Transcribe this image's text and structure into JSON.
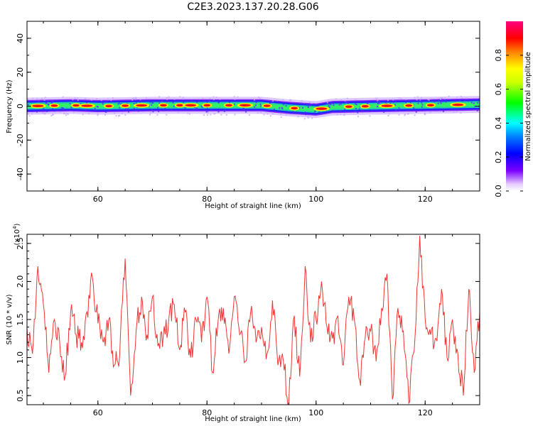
{
  "title": "C2E3.2023.137.20.28.G06",
  "chart_data": [
    {
      "type": "heatmap",
      "xlabel": "Height of straight line (km)",
      "ylabel": "Frequency (Hz)",
      "xlim": [
        47,
        130
      ],
      "ylim": [
        -50,
        50
      ],
      "xticks": [
        "60",
        "80",
        "100",
        "120"
      ],
      "yticks": [
        "40",
        "20",
        "0",
        "-20",
        "-40"
      ],
      "band_center_hz": [
        [
          47,
          0
        ],
        [
          55,
          0.5
        ],
        [
          60,
          0
        ],
        [
          70,
          0.5
        ],
        [
          80,
          0.5
        ],
        [
          90,
          0.5
        ],
        [
          95,
          -1
        ],
        [
          100,
          -2
        ],
        [
          103,
          -0.5
        ],
        [
          110,
          0
        ],
        [
          120,
          0.5
        ],
        [
          130,
          1
        ]
      ],
      "band_core_halfwidth_hz": 2,
      "band_outer_halfwidth_hz": 5,
      "colorbar": {
        "label": "Normalized spectral amplitude",
        "range": [
          0,
          1
        ],
        "ticks": [
          "0.0",
          "0.2",
          "0.4",
          "0.6",
          "0.8"
        ]
      }
    },
    {
      "type": "line",
      "xlabel": "Height of straight line (km)",
      "ylabel": "SNR (10 * v/v)",
      "y_multiplier": "(x10",
      "y_multiplier_exp": "4",
      "y_multiplier_close": ")",
      "xlim": [
        47,
        130
      ],
      "ylim": [
        0.38,
        2.62
      ],
      "xticks": [
        "60",
        "80",
        "100",
        "120"
      ],
      "yticks": [
        "0.5",
        "1.0",
        "1.5",
        "2.0",
        "2.5"
      ],
      "color": "#ee3333",
      "series": [
        {
          "x": [
            47,
            48,
            49,
            50,
            51,
            52,
            53,
            54,
            55,
            56,
            57,
            58,
            59,
            60,
            61,
            62,
            63,
            64,
            65,
            66,
            67,
            68,
            69,
            70,
            71,
            72,
            73,
            74,
            75,
            76,
            77,
            78,
            79,
            80,
            81,
            82,
            83,
            84,
            85,
            86,
            87,
            88,
            89,
            90,
            91,
            92,
            93,
            94,
            95,
            96,
            97,
            98,
            99,
            100,
            101,
            102,
            103,
            104,
            105,
            106,
            107,
            108,
            109,
            110,
            111,
            112,
            113,
            114,
            115,
            116,
            117,
            118,
            119,
            120,
            121,
            122,
            123,
            124,
            125,
            126,
            127,
            128,
            129,
            130
          ],
          "values": [
            1.4,
            1.05,
            2.2,
            1.7,
            0.8,
            1.5,
            1.2,
            0.75,
            1.6,
            1.3,
            1.2,
            1.6,
            2.05,
            1.45,
            1.2,
            1.5,
            0.9,
            1.05,
            2.3,
            0.5,
            1.35,
            1.8,
            1.3,
            1.8,
            1.15,
            1.3,
            1.5,
            1.7,
            1.1,
            1.6,
            1.0,
            1.5,
            1.2,
            1.8,
            0.8,
            1.45,
            1.65,
            1.05,
            1.8,
            1.3,
            0.95,
            1.6,
            1.2,
            1.4,
            1.05,
            1.75,
            0.9,
            0.95,
            0.4,
            1.55,
            0.75,
            2.2,
            1.2,
            1.5,
            2.0,
            1.4,
            1.25,
            1.55,
            0.9,
            1.8,
            1.5,
            0.7,
            1.25,
            1.35,
            0.95,
            1.65,
            2.1,
            0.45,
            1.65,
            1.35,
            0.4,
            1.1,
            2.6,
            1.5,
            1.3,
            1.25,
            1.9,
            1.0,
            1.5,
            1.05,
            0.5,
            1.9,
            0.8,
            1.6
          ]
        }
      ]
    }
  ]
}
